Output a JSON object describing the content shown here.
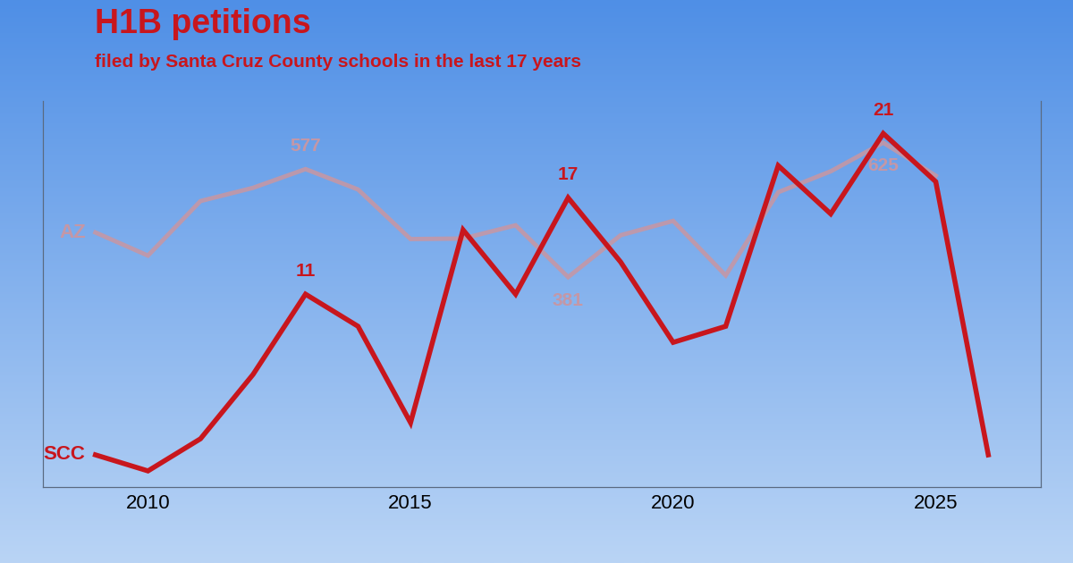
{
  "chart_data": {
    "type": "line",
    "title": "H1B petitions",
    "subtitle": "filed by Santa Cruz County schools in the last 17 years",
    "x": [
      2009,
      2010,
      2011,
      2012,
      2013,
      2014,
      2015,
      2016,
      2017,
      2018,
      2019,
      2020,
      2021,
      2022,
      2023,
      2024,
      2025,
      2026
    ],
    "series": [
      {
        "name": "AZ",
        "color": "#c497a6",
        "axis": "y2",
        "values": [
          462,
          420,
          519,
          543,
          577,
          540,
          450,
          451,
          475,
          381,
          457,
          483,
          384,
          535,
          573,
          625,
          565,
          null
        ]
      },
      {
        "name": "SCC",
        "color": "#c8161d",
        "values": [
          1,
          0,
          2,
          6,
          11,
          9,
          3,
          15,
          11,
          17,
          13,
          8,
          9,
          19,
          16,
          21,
          18,
          1
        ]
      }
    ],
    "annotations": [
      {
        "series": "SCC",
        "x": 2013,
        "label": "11"
      },
      {
        "series": "SCC",
        "x": 2018,
        "label": "17"
      },
      {
        "series": "SCC",
        "x": 2024,
        "label": "21"
      },
      {
        "series": "AZ",
        "x": 2013,
        "label": "577"
      },
      {
        "series": "AZ",
        "x": 2018,
        "label": "381"
      },
      {
        "series": "AZ",
        "x": 2024,
        "label": "625"
      }
    ],
    "xlim": [
      2008,
      2027
    ],
    "xticks": [
      2010,
      2015,
      2020,
      2025
    ],
    "ylim": [
      -1,
      23
    ],
    "yticks": [],
    "y2lim": [
      0,
      700
    ],
    "y2ticks": [],
    "tick_labels": "x",
    "grid": false
  }
}
